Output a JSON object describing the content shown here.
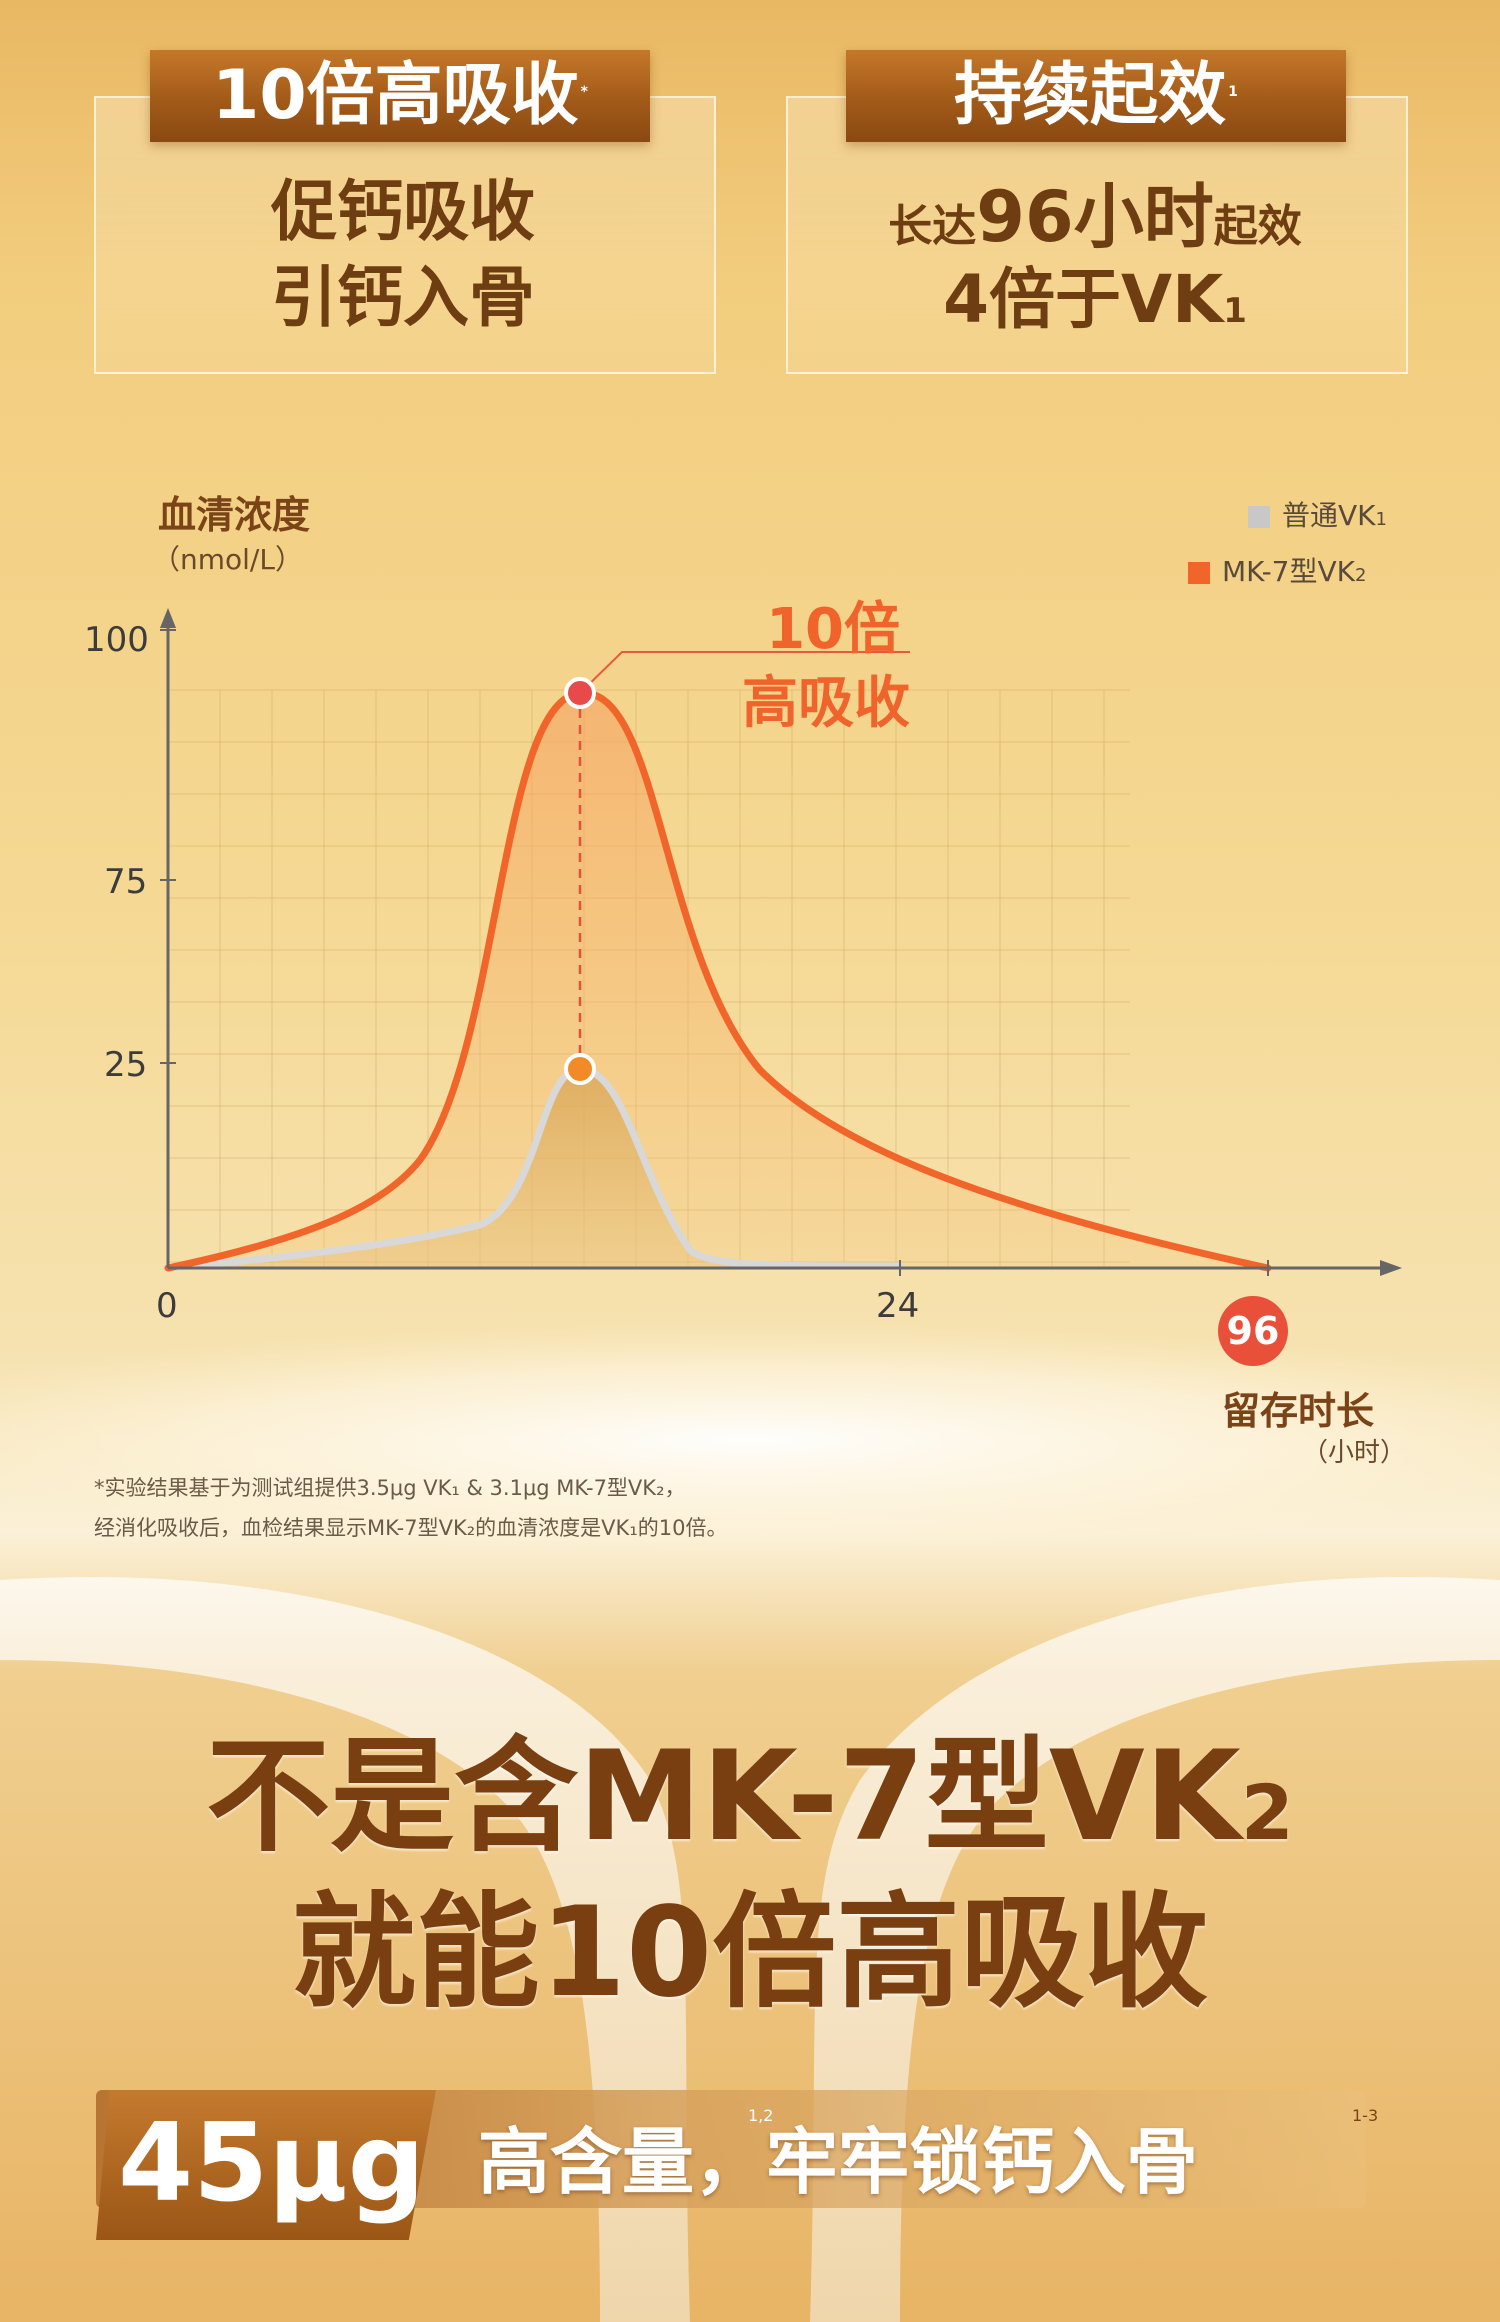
{
  "colors": {
    "accent_orange": "#f2652a",
    "peak_red": "#e84a4a",
    "gray_series": "#c8c8c8",
    "brown_text": "#6e3d12",
    "gold_bg": "#f0c970"
  },
  "panels": [
    {
      "tag": "10倍高吸收",
      "tag_sup": "*",
      "line1": "促钙吸收",
      "line2": "引钙入骨"
    },
    {
      "tag": "持续起效",
      "tag_sup": "1",
      "line1_pre": "长达",
      "line1_mid": "96小时",
      "line1_post": "起效",
      "line2": "4倍于VK",
      "line2_sub": "1"
    }
  ],
  "chart_data": {
    "type": "line",
    "ylabel": "血清浓度",
    "yunit": "（nmol/L）",
    "xlabel": "留存时长",
    "xunit": "（小时）",
    "y_ticks": [
      "100",
      "75",
      "25"
    ],
    "x_ticks": [
      "0",
      "24"
    ],
    "x_end_badge": "96",
    "legend": [
      {
        "label": "普通VK",
        "sub": "1",
        "color": "#c8c8c8"
      },
      {
        "label": "MK-7型VK",
        "sub": "2",
        "color": "#f2652a"
      }
    ],
    "annotation": {
      "line1": "10倍",
      "line2": "高吸收"
    },
    "series": [
      {
        "name": "普通VK1",
        "peak": 25
      },
      {
        "name": "MK-7型VK2",
        "peak": 95
      }
    ]
  },
  "footnote": {
    "line1": "*实验结果基于为测试组提供3.5μg VK₁ & 3.1μg MK-7型VK₂，",
    "line2": "经消化吸收后，血检结果显示MK-7型VK₂的血清浓度是VK₁的10倍。"
  },
  "headline": {
    "line1": "不是含MK-7型VK",
    "line1_sub": "2",
    "line2": "就能10倍高吸收"
  },
  "bottom": {
    "amount": "45μg",
    "sup1": "1,2",
    "text": "高含量，牢牢锁钙入骨",
    "sup2": "1-3"
  }
}
